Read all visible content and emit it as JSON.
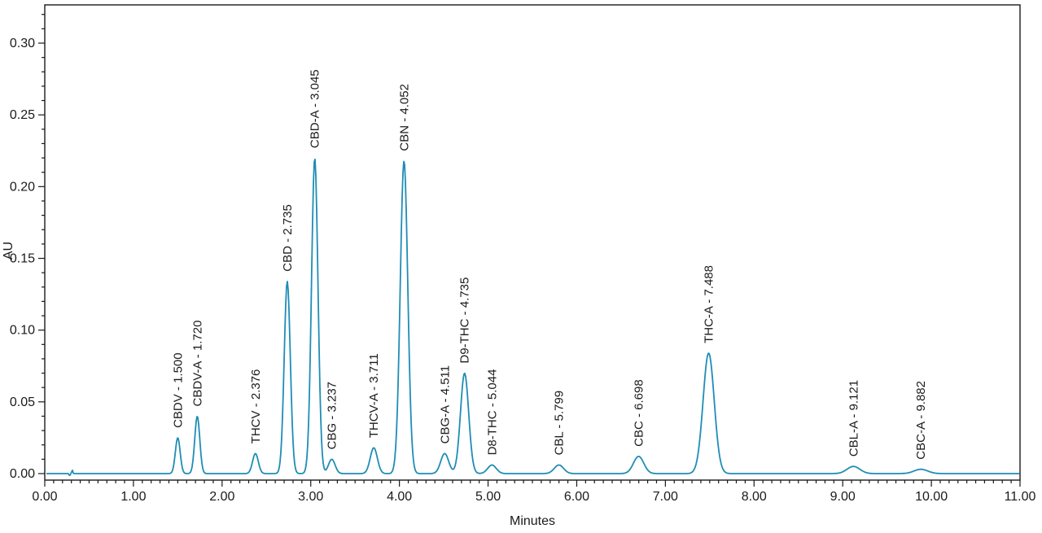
{
  "chart_data": {
    "type": "line",
    "xlabel": "Minutes",
    "ylabel": "AU",
    "xlim": [
      0,
      11
    ],
    "ylim": [
      0,
      0.32
    ],
    "x_tick_labels": [
      "0.00",
      "1.00",
      "2.00",
      "3.00",
      "4.00",
      "5.00",
      "6.00",
      "7.00",
      "8.00",
      "9.00",
      "10.00",
      "11.00"
    ],
    "y_tick_labels": [
      "0.00",
      "0.05",
      "0.10",
      "0.15",
      "0.20",
      "0.25",
      "0.30"
    ],
    "x_ticks": [
      0,
      1,
      2,
      3,
      4,
      5,
      6,
      7,
      8,
      9,
      10,
      11
    ],
    "y_ticks": [
      0,
      0.05,
      0.1,
      0.15,
      0.2,
      0.25,
      0.3
    ],
    "grid": false,
    "line_color": "#1f8db5",
    "baseline": 0.0,
    "peaks": [
      {
        "label": "CBDV - 1.500",
        "rt": 1.5,
        "height": 0.025
      },
      {
        "label": "CBDV-A - 1.720",
        "rt": 1.72,
        "height": 0.04
      },
      {
        "label": "THCV - 2.376",
        "rt": 2.376,
        "height": 0.014
      },
      {
        "label": "CBD - 2.735",
        "rt": 2.735,
        "height": 0.134
      },
      {
        "label": "CBD-A - 3.045",
        "rt": 3.045,
        "height": 0.22
      },
      {
        "label": "CBG - 3.237",
        "rt": 3.237,
        "height": 0.01
      },
      {
        "label": "THCV-A - 3.711",
        "rt": 3.711,
        "height": 0.018
      },
      {
        "label": "CBN - 4.052",
        "rt": 4.052,
        "height": 0.218
      },
      {
        "label": "CBG-A - 4.511",
        "rt": 4.511,
        "height": 0.014
      },
      {
        "label": "D9-THC - 4.735",
        "rt": 4.735,
        "height": 0.07
      },
      {
        "label": "D8-THC - 5.044",
        "rt": 5.044,
        "height": 0.006
      },
      {
        "label": "CBL - 5.799",
        "rt": 5.799,
        "height": 0.006
      },
      {
        "label": "CBC - 6.698",
        "rt": 6.698,
        "height": 0.012
      },
      {
        "label": "THC-A - 7.488",
        "rt": 7.488,
        "height": 0.084
      },
      {
        "label": "CBL-A - 9.121",
        "rt": 9.121,
        "height": 0.005
      },
      {
        "label": "CBC-A - 9.882",
        "rt": 9.882,
        "height": 0.003
      }
    ]
  }
}
